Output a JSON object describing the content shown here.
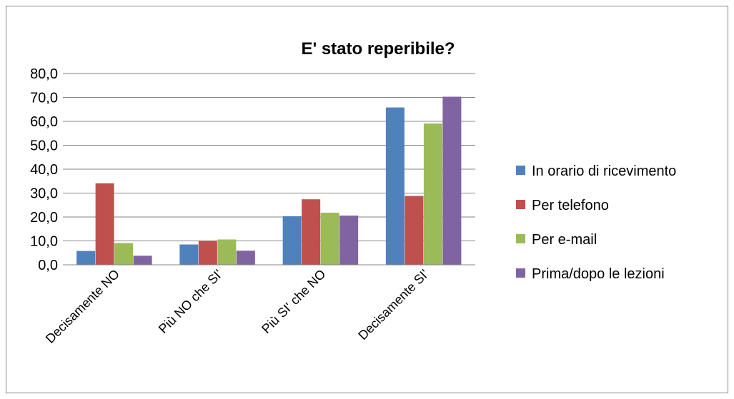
{
  "chart_data": {
    "type": "bar",
    "title": "E' stato reperibile?",
    "xlabel": "",
    "ylabel": "",
    "ylim": [
      0,
      80
    ],
    "y_ticks": [
      "0,0",
      "10,0",
      "20,0",
      "30,0",
      "40,0",
      "50,0",
      "60,0",
      "70,0",
      "80,0"
    ],
    "categories": [
      "Decisamente NO",
      "Più NO che SI'",
      "Più SI' che NO",
      "Decisamente SI'"
    ],
    "grid": true,
    "legend_position": "right",
    "series": [
      {
        "name": "In orario di ricevimento",
        "color": "#4F81BD",
        "values": [
          5.8,
          8.5,
          20.3,
          65.8
        ]
      },
      {
        "name": "Per telefono",
        "color": "#C0504D",
        "values": [
          34.1,
          10.0,
          27.4,
          28.8
        ]
      },
      {
        "name": "Per e-mail",
        "color": "#9BBB59",
        "values": [
          9.1,
          10.6,
          21.8,
          59.1
        ]
      },
      {
        "name": "Prima/dopo le lezioni",
        "color": "#8064A2",
        "values": [
          3.8,
          5.9,
          20.6,
          70.3
        ]
      }
    ]
  }
}
